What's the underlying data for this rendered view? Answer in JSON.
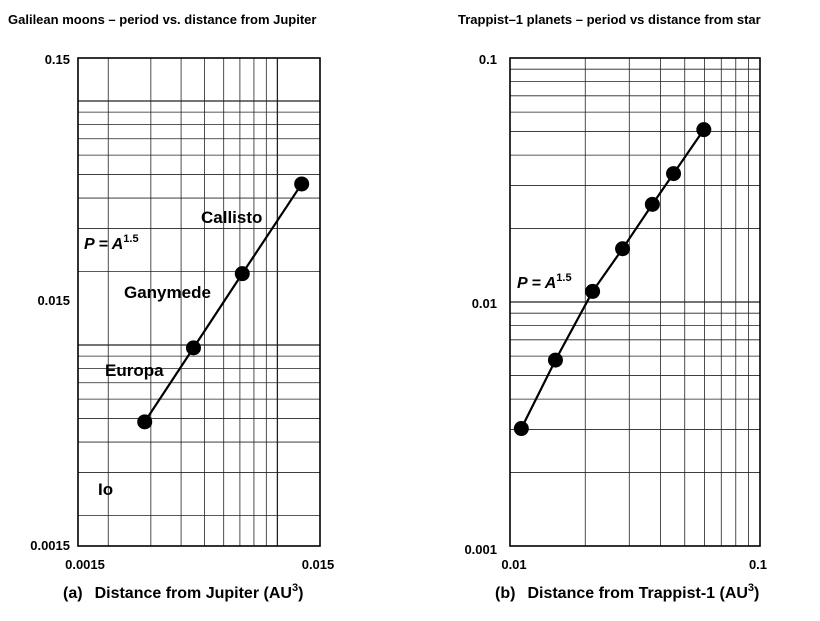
{
  "chart_data": [
    {
      "type": "scatter",
      "title": "Galilean moons – period vs. distance from Jupiter",
      "caption_letter": "(a)",
      "xlabel": "Distance from Jupiter (AU",
      "xlabel_sup": "3",
      "xlabel_close": ")",
      "xscale": "log",
      "yscale": "log",
      "xlim": [
        0.0015,
        0.015
      ],
      "ylim": [
        0.0015,
        0.15
      ],
      "x_tick_labels": [
        "0.0015",
        "0.015"
      ],
      "y_tick_labels": [
        "0.0015",
        "0.015",
        "0.15"
      ],
      "grid": true,
      "line": true,
      "formula": "P = A",
      "formula_sup": "1.5",
      "points": [
        {
          "label": "Io",
          "x": 0.00283,
          "y": 0.00484
        },
        {
          "label": "Europa",
          "x": 0.0045,
          "y": 0.00973
        },
        {
          "label": "Ganymede",
          "x": 0.00716,
          "y": 0.0196
        },
        {
          "label": "Callisto",
          "x": 0.0126,
          "y": 0.0457
        }
      ]
    },
    {
      "type": "scatter",
      "title": "Trappist–1 planets  – period vs distance from star",
      "caption_letter": "(b)",
      "xlabel": "Distance from Trappist-1 (AU",
      "xlabel_sup": "3",
      "xlabel_close": ")",
      "xscale": "log",
      "yscale": "log",
      "xlim": [
        0.01,
        0.1
      ],
      "ylim": [
        0.001,
        0.1
      ],
      "x_tick_labels": [
        "0.01",
        "0.1"
      ],
      "y_tick_labels": [
        "0.001",
        "0.01",
        "0.1"
      ],
      "grid": true,
      "line": true,
      "formula": "P = A",
      "formula_sup": "1.5",
      "points": [
        {
          "label": "",
          "x": 0.0111,
          "y": 0.00303
        },
        {
          "label": "",
          "x": 0.0152,
          "y": 0.00578
        },
        {
          "label": "",
          "x": 0.0214,
          "y": 0.01105
        },
        {
          "label": "",
          "x": 0.0282,
          "y": 0.01653
        },
        {
          "label": "",
          "x": 0.0371,
          "y": 0.02513
        },
        {
          "label": "",
          "x": 0.0451,
          "y": 0.0336
        },
        {
          "label": "",
          "x": 0.0596,
          "y": 0.05086
        }
      ]
    }
  ]
}
